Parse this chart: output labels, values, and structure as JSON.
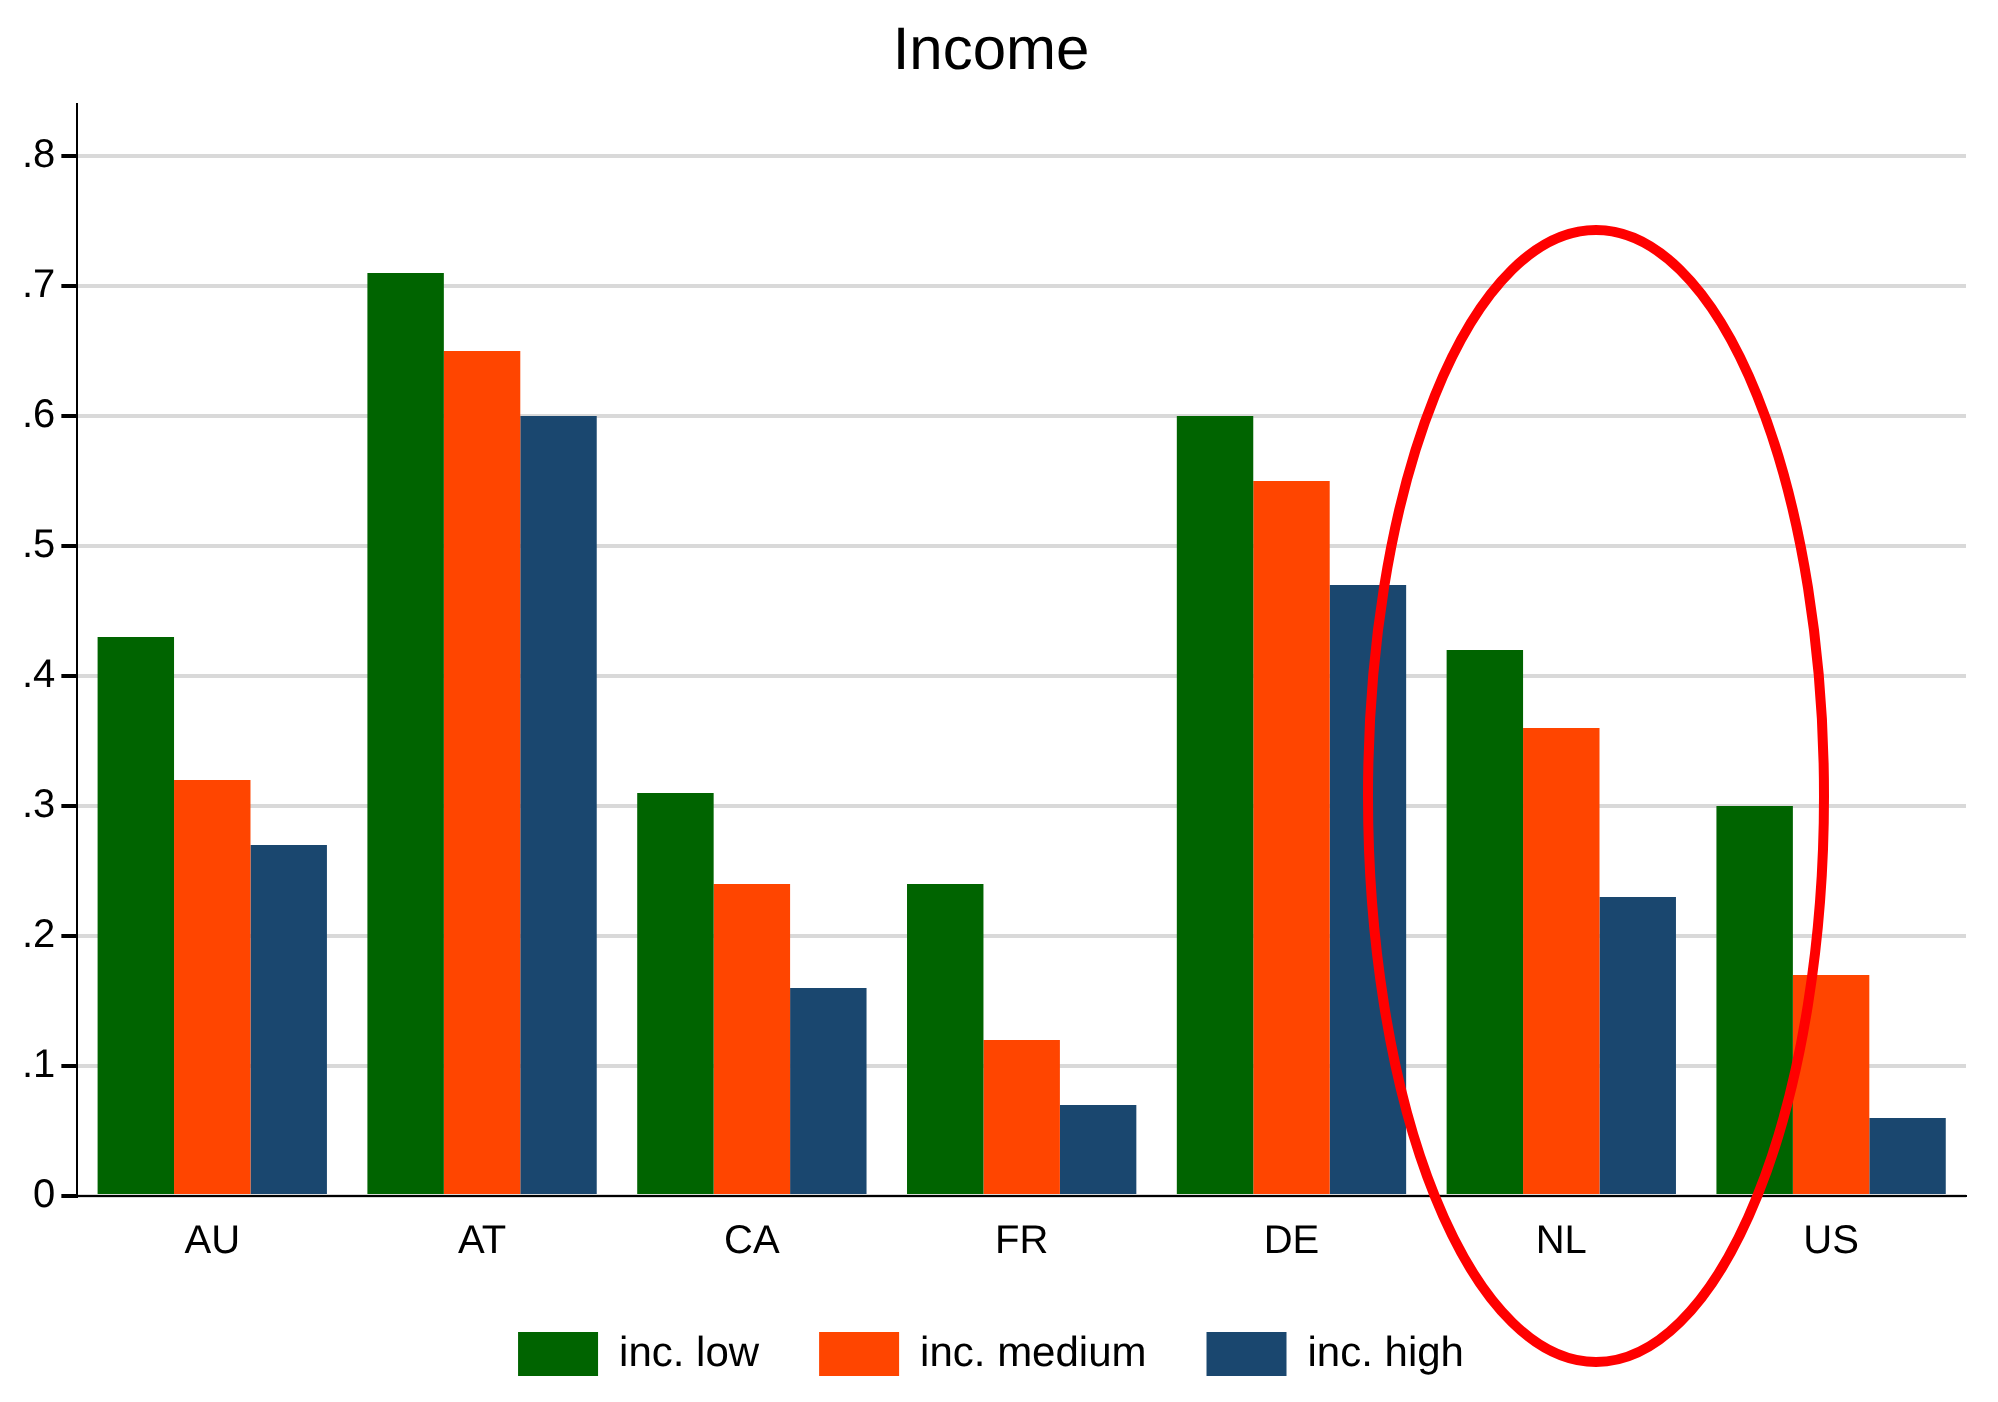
{
  "chart_data": {
    "type": "bar",
    "title": "Income",
    "categories": [
      "AU",
      "AT",
      "CA",
      "FR",
      "DE",
      "NL",
      "US"
    ],
    "series": [
      {
        "name": "inc. low",
        "color": "#006400",
        "values": [
          0.43,
          0.71,
          0.31,
          0.24,
          0.6,
          0.42,
          0.3
        ]
      },
      {
        "name": "inc. medium",
        "color": "#ff4500",
        "values": [
          0.32,
          0.65,
          0.24,
          0.12,
          0.55,
          0.36,
          0.17
        ]
      },
      {
        "name": "inc. high",
        "color": "#1a476f",
        "values": [
          0.27,
          0.6,
          0.16,
          0.07,
          0.47,
          0.23,
          0.06
        ]
      }
    ],
    "ylim": [
      0,
      0.84
    ],
    "yticks": [
      0,
      {
        "value": 0.1,
        "label": ".1"
      },
      {
        "value": 0.2,
        "label": ".2"
      },
      {
        "value": 0.3,
        "label": ".3"
      },
      {
        "value": 0.4,
        "label": ".4"
      },
      {
        "value": 0.5,
        "label": ".5"
      },
      {
        "value": 0.6,
        "label": ".6"
      },
      {
        "value": 0.7,
        "label": ".7"
      },
      {
        "value": 0.8,
        "label": ".8"
      }
    ],
    "grid": "y",
    "legend": "bottom"
  }
}
